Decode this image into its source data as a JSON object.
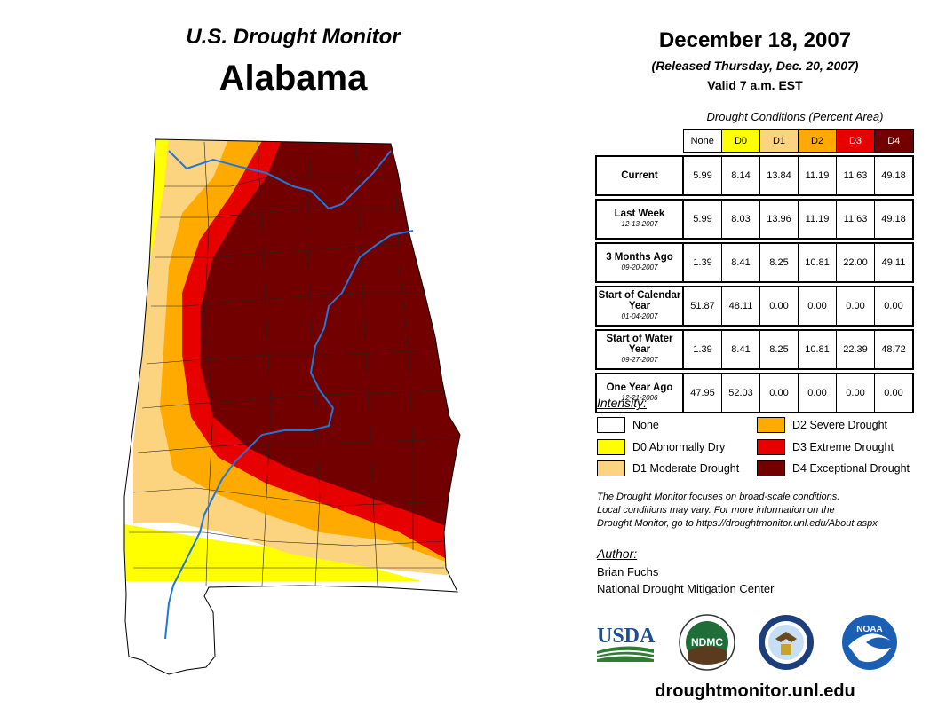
{
  "header": {
    "product": "U.S. Drought Monitor",
    "state": "Alabama",
    "date": "December 18, 2007",
    "released": "(Released Thursday, Dec. 20, 2007)",
    "valid": "Valid 7 a.m. EST"
  },
  "table": {
    "caption": "Drought Conditions (Percent Area)",
    "columns": [
      {
        "label": "None",
        "color": "#ffffff",
        "text_color": "#000000"
      },
      {
        "label": "D0",
        "color": "#ffff00",
        "text_color": "#000000"
      },
      {
        "label": "D1",
        "color": "#fcd37f",
        "text_color": "#000000"
      },
      {
        "label": "D2",
        "color": "#ffaa00",
        "text_color": "#000000"
      },
      {
        "label": "D3",
        "color": "#e60000",
        "text_color": "#ffffff"
      },
      {
        "label": "D4",
        "color": "#730000",
        "text_color": "#ffffff"
      }
    ],
    "rows": [
      {
        "label": "Current",
        "date": "",
        "values": [
          "5.99",
          "8.14",
          "13.84",
          "11.19",
          "11.63",
          "49.18"
        ]
      },
      {
        "label": "Last Week",
        "date": "12-13-2007",
        "values": [
          "5.99",
          "8.03",
          "13.96",
          "11.19",
          "11.63",
          "49.18"
        ]
      },
      {
        "label": "3 Months Ago",
        "date": "09-20-2007",
        "values": [
          "1.39",
          "8.41",
          "8.25",
          "10.81",
          "22.00",
          "49.11"
        ]
      },
      {
        "label": "Start of Calendar Year",
        "date": "01-04-2007",
        "values": [
          "51.87",
          "48.11",
          "0.00",
          "0.00",
          "0.00",
          "0.00"
        ]
      },
      {
        "label": "Start of Water Year",
        "date": "09-27-2007",
        "values": [
          "1.39",
          "8.41",
          "8.25",
          "10.81",
          "22.39",
          "48.72"
        ]
      },
      {
        "label": "One Year Ago",
        "date": "12-21-2006",
        "values": [
          "47.95",
          "52.03",
          "0.00",
          "0.00",
          "0.00",
          "0.00"
        ]
      }
    ]
  },
  "legend": {
    "title": "Intensity:",
    "items": [
      {
        "label": "None",
        "color": "#ffffff"
      },
      {
        "label": "D0 Abnormally Dry",
        "color": "#ffff00"
      },
      {
        "label": "D1 Moderate Drought",
        "color": "#fcd37f"
      },
      {
        "label": "D2 Severe Drought",
        "color": "#ffaa00"
      },
      {
        "label": "D3 Extreme Drought",
        "color": "#e60000"
      },
      {
        "label": "D4 Exceptional Drought",
        "color": "#730000"
      }
    ]
  },
  "note": {
    "line1": "The Drought Monitor focuses on broad-scale conditions.",
    "line2": "Local conditions may vary. For more information on the",
    "line3": "Drought Monitor, go to https://droughtmonitor.unl.edu/About.aspx"
  },
  "author": {
    "title": "Author:",
    "name": "Brian Fuchs",
    "org": "National Drought Mitigation Center"
  },
  "logos": {
    "usda": "USDA",
    "ndmc": "NDMC",
    "noaa": "NOAA",
    "commerce_icon": "eagle-seal-icon"
  },
  "website": "droughtmonitor.unl.edu",
  "colors": {
    "river": "#1e78dc",
    "county_line": "#222222"
  }
}
